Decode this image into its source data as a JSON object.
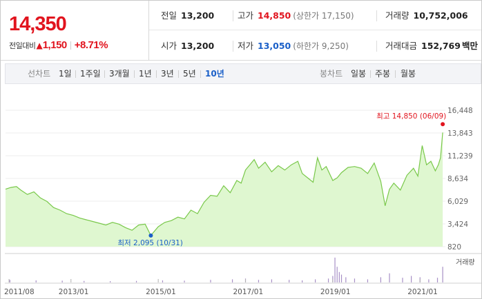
{
  "quote": {
    "price": "14,350",
    "change_label": "전일대비",
    "change_arrow": "▲",
    "change_value": "1,150",
    "change_percent": "+8.71%",
    "prev_close": {
      "label": "전일",
      "value": "13,200"
    },
    "high": {
      "label": "고가",
      "value": "14,850",
      "limit": "(상한가 17,150)"
    },
    "volume": {
      "label": "거래량",
      "value": "10,752,006"
    },
    "open": {
      "label": "시가",
      "value": "13,200"
    },
    "low": {
      "label": "저가",
      "value": "13,050",
      "limit": "(하한가 9,250)"
    },
    "trade_value": {
      "label": "거래대금",
      "value": "152,769",
      "unit": "백만"
    }
  },
  "toolbar": {
    "line_chart_label": "선차트",
    "periods": [
      "1일",
      "1주일",
      "3개월",
      "1년",
      "3년",
      "5년",
      "10년"
    ],
    "active_period": "10년",
    "candle_label": "봉차트",
    "candle_periods": [
      "일봉",
      "주봉",
      "월봉"
    ]
  },
  "colors": {
    "up": "#e1141e",
    "down": "#1a5fc8",
    "area": "#dff7d0",
    "line": "#79c84a"
  },
  "chart_data": {
    "type": "area",
    "y_ticks": [
      "16,448",
      "13,843",
      "11,239",
      "8,634",
      "6,029",
      "3,424",
      "820"
    ],
    "ylim": [
      820,
      16448
    ],
    "x_ticks": [
      "2011/08",
      "2013/01",
      "2015/01",
      "2017/01",
      "2019/01",
      "2021/01"
    ],
    "x_tick_years": [
      2011.58,
      2013.0,
      2015.0,
      2017.0,
      2019.0,
      2021.0
    ],
    "xlim": [
      2011.5,
      2021.55
    ],
    "series": [
      {
        "x": [
          2011.5,
          2011.62,
          2011.75,
          2011.85,
          2012.0,
          2012.15,
          2012.3,
          2012.45,
          2012.6,
          2012.75,
          2012.9,
          2013.05,
          2013.2,
          2013.35,
          2013.5,
          2013.65,
          2013.8,
          2013.95,
          2014.1,
          2014.25,
          2014.4,
          2014.55,
          2014.7,
          2014.83,
          2015.0,
          2015.15,
          2015.3,
          2015.45,
          2015.6,
          2015.75,
          2015.9,
          2016.05,
          2016.2,
          2016.35,
          2016.5,
          2016.65,
          2016.8,
          2016.9,
          2017.0,
          2017.1,
          2017.2,
          2017.3,
          2017.45,
          2017.6,
          2017.75,
          2017.9,
          2018.05,
          2018.2,
          2018.3,
          2018.45,
          2018.55,
          2018.65,
          2018.75,
          2018.85,
          2019.0,
          2019.1,
          2019.2,
          2019.35,
          2019.5,
          2019.65,
          2019.8,
          2019.95,
          2020.1,
          2020.2,
          2020.3,
          2020.4,
          2020.55,
          2020.7,
          2020.85,
          2020.95,
          2021.05,
          2021.15,
          2021.25,
          2021.35,
          2021.42,
          2021.47,
          2021.52
        ],
        "y": [
          7400,
          7600,
          7700,
          7300,
          6800,
          7100,
          6400,
          6000,
          5300,
          5000,
          4600,
          4400,
          4100,
          3900,
          3700,
          3500,
          3300,
          3600,
          3400,
          3000,
          2700,
          3300,
          3400,
          2095,
          3100,
          3600,
          3800,
          4200,
          4000,
          5000,
          4600,
          5900,
          6700,
          6600,
          7800,
          7000,
          8400,
          8100,
          9600,
          10200,
          10800,
          9800,
          10500,
          9400,
          10100,
          9600,
          10200,
          10600,
          9200,
          8600,
          8200,
          11000,
          9600,
          10000,
          8400,
          8700,
          9300,
          9900,
          10000,
          9800,
          9200,
          10400,
          8300,
          5500,
          7400,
          8100,
          7300,
          9000,
          9800,
          8900,
          12400,
          10200,
          10600,
          9500,
          10200,
          11000,
          13900
        ]
      }
    ],
    "min": {
      "label": "최저",
      "value": "2,095",
      "date": "(10/31)",
      "x": 2014.83,
      "y": 2095
    },
    "max": {
      "label": "최고",
      "value": "14,850",
      "date": "(06/09)",
      "x": 2021.52,
      "y": 14850
    },
    "volume": {
      "label": "거래량",
      "x": [
        2011.6,
        2012.2,
        2012.8,
        2013.3,
        2013.9,
        2014.5,
        2015.1,
        2015.6,
        2016.2,
        2016.7,
        2017.0,
        2017.3,
        2017.6,
        2018.0,
        2018.3,
        2018.6,
        2018.9,
        2019.0,
        2019.05,
        2019.1,
        2019.15,
        2019.2,
        2019.3,
        2019.5,
        2019.8,
        2020.1,
        2020.3,
        2020.6,
        2020.8,
        2021.0,
        2021.2,
        2021.4,
        2021.52
      ],
      "v": [
        0.1,
        0.08,
        0.07,
        0.06,
        0.05,
        0.06,
        0.08,
        0.07,
        0.1,
        0.12,
        0.15,
        0.1,
        0.12,
        0.1,
        0.08,
        0.12,
        0.15,
        0.25,
        0.95,
        0.6,
        0.4,
        0.3,
        0.2,
        0.15,
        0.12,
        0.2,
        0.35,
        0.18,
        0.25,
        0.2,
        0.12,
        0.18,
        0.6
      ]
    }
  }
}
